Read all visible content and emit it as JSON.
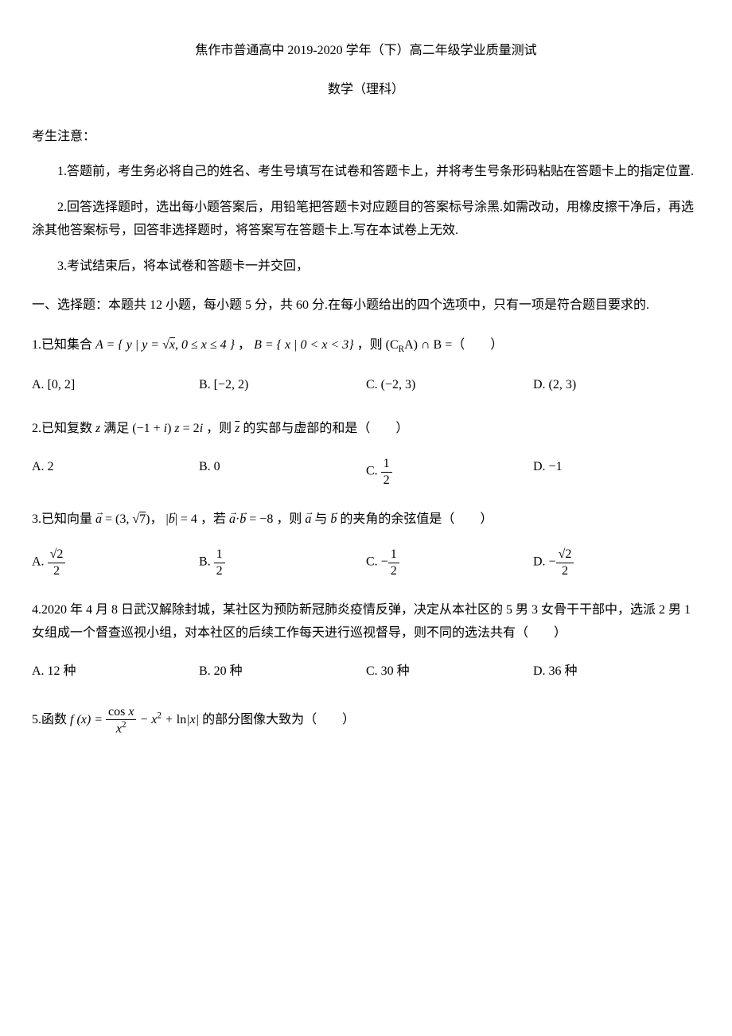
{
  "title": "焦作市普通高中 2019-2020 学年（下）高二年级学业质量测试",
  "subtitle": "数学（理科）",
  "notice_heading": "考生注意：",
  "notices": [
    "1.答题前，考生务必将自己的姓名、考生号填写在试卷和答题卡上，并将考生号条形码粘贴在答题卡上的指定位置.",
    "2.回答选择题时，选出每小题答案后，用铅笔把答题卡对应题目的答案标号涂黑.如需改动，用橡皮擦干净后，再选涂其他答案标号，回答非选择题时，将答案写在答题卡上.写在本试卷上无效.",
    "3.考试结束后，将本试卷和答题卡一并交回，"
  ],
  "section1_header": "一、选择题：本题共 12 小题，每小题 5 分，共 60 分.在每小题给出的四个选项中，只有一项是符合题目要求的.",
  "q1": {
    "prefix": "1.已知集合 ",
    "set_a": "A = { y | y = √x, 0 ≤ x ≤ 4 }",
    "set_b": "B = { x | 0 < x < 3}",
    "suffix": "，则 (CᴿA) ∩ B =（　　）",
    "opt_a": "A. [0, 2]",
    "opt_b": "B. [−2, 2)",
    "opt_c": "C. (−2, 3)",
    "opt_d": "D. (2, 3)"
  },
  "q2": {
    "text": "2.已知复数 z 满足 (−1 + i) z = 2i ，则 z̄ 的实部与虚部的和是（　　）",
    "opt_a": "A. 2",
    "opt_b": "B. 0",
    "opt_c_prefix": "C. ",
    "opt_c_num": "1",
    "opt_c_den": "2",
    "opt_d": "D. −1"
  },
  "q3": {
    "text": "3.已知向量 a⃗ = (3, √7)， |b⃗| = 4 ，若 a⃗·b⃗ = −8 ，则 a⃗ 与 b⃗ 的夹角的余弦值是（　　）",
    "opt_a_prefix": "A. ",
    "opt_a_num": "√2",
    "opt_a_den": "2",
    "opt_b_prefix": "B. ",
    "opt_b_num": "1",
    "opt_b_den": "2",
    "opt_c_prefix": "C. −",
    "opt_c_num": "1",
    "opt_c_den": "2",
    "opt_d_prefix": "D. −",
    "opt_d_num": "√2",
    "opt_d_den": "2"
  },
  "q4": {
    "text": "4.2020 年 4 月 8 日武汉解除封城，某社区为预防新冠肺炎疫情反弹，决定从本社区的 5 男 3 女骨干干部中，选派 2 男 1 女组成一个督查巡视小组，对本社区的后续工作每天进行巡视督导，则不同的选法共有（　　）",
    "opt_a": "A. 12 种",
    "opt_b": "B. 20 种",
    "opt_c": "C. 30 种",
    "opt_d": "D. 36 种"
  },
  "q5": {
    "prefix": "5.函数 ",
    "func": "f(x) = ",
    "frac_num": "cos x",
    "frac_den": "x²",
    "rest": " − x² + ln|x|",
    "suffix": " 的部分图像大致为（　　）"
  }
}
